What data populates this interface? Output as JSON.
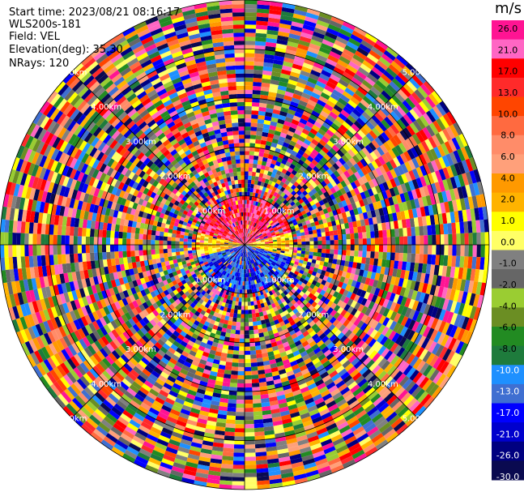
{
  "header": {
    "start_time": "Start time: 2023/08/21 08:16:17",
    "instrument": "WLS200s-181",
    "field": "Field: VEL",
    "elevation": "Elevation(deg): 35.30",
    "nrays": "NRays: 120"
  },
  "chart_data": {
    "type": "heatmap",
    "projection": "polar-ppi",
    "nrays": 120,
    "range_rings_km": [
      1.0,
      2.0,
      3.0,
      4.0,
      5.0
    ],
    "range_ring_labels": [
      "1.00km",
      "2.00km",
      "3.00km",
      "4.00km",
      "5.00km"
    ],
    "colorbar": {
      "unit": "m/s",
      "ticks": [
        "26.0",
        "21.0",
        "17.0",
        "13.0",
        "10.0",
        "8.0",
        "6.0",
        "4.0",
        "2.0",
        "1.0",
        "0.0",
        "-1.0",
        "-2.0",
        "-4.0",
        "-6.0",
        "-8.0",
        "-10.0",
        "-13.0",
        "-17.0",
        "-21.0",
        "-26.0",
        "-30.0"
      ],
      "colors": [
        "#ff1493",
        "#ff66c4",
        "#ff0000",
        "#ff2a2a",
        "#ff4500",
        "#ff6a40",
        "#ff8c69",
        "#ffa07a",
        "#ff9900",
        "#ffb300",
        "#ffff00",
        "#ffff66",
        "#808080",
        "#666666",
        "#9acd32",
        "#6b8e23",
        "#228b22",
        "#1e7b3c",
        "#1e90ff",
        "#3f6fd1",
        "#0000ff",
        "#0000cd",
        "#000080",
        "#0a0a50"
      ]
    }
  }
}
